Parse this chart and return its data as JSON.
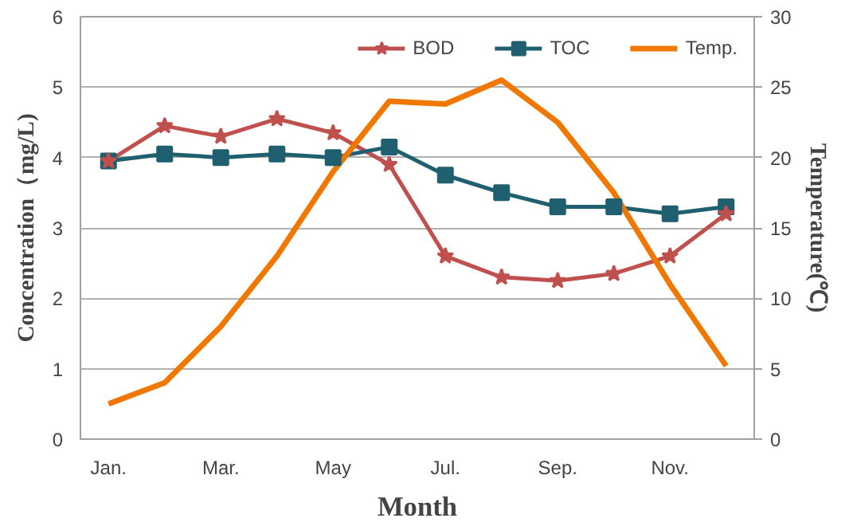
{
  "chart_data": {
    "type": "line",
    "xlabel": "Month",
    "ylabel": "Concentration（mg/L)",
    "y2label": "Temperature(℃)",
    "categories": [
      "Jan.",
      null,
      "Mar.",
      null,
      "May",
      null,
      "Jul.",
      null,
      "Sep.",
      null,
      "Nov.",
      null
    ],
    "series": [
      {
        "name": "BOD",
        "color": "#c0504d",
        "marker": "star",
        "values": [
          3.95,
          4.45,
          4.3,
          4.55,
          4.35,
          3.9,
          2.6,
          2.3,
          2.25,
          2.35,
          2.6,
          3.2
        ]
      },
      {
        "name": "TOC",
        "color": "#1f5f6f",
        "marker": "square",
        "values": [
          3.95,
          4.05,
          4.0,
          4.05,
          4.0,
          4.15,
          3.75,
          3.5,
          3.3,
          3.3,
          3.2,
          3.3
        ]
      },
      {
        "name": "Temp.",
        "color": "#f07800",
        "marker": "none",
        "axis": "y2",
        "values": [
          2.5,
          4,
          8,
          13,
          19,
          24,
          23.8,
          25.5,
          22.5,
          17.5,
          11,
          5.2
        ]
      }
    ],
    "ylim": [
      0,
      6
    ],
    "yticks": [
      0,
      1,
      2,
      3,
      4,
      5,
      6
    ],
    "y2lim": [
      0,
      30
    ],
    "y2ticks": [
      0,
      5,
      10,
      15,
      20,
      25,
      30
    ],
    "grid": "y",
    "legend": "top right"
  }
}
